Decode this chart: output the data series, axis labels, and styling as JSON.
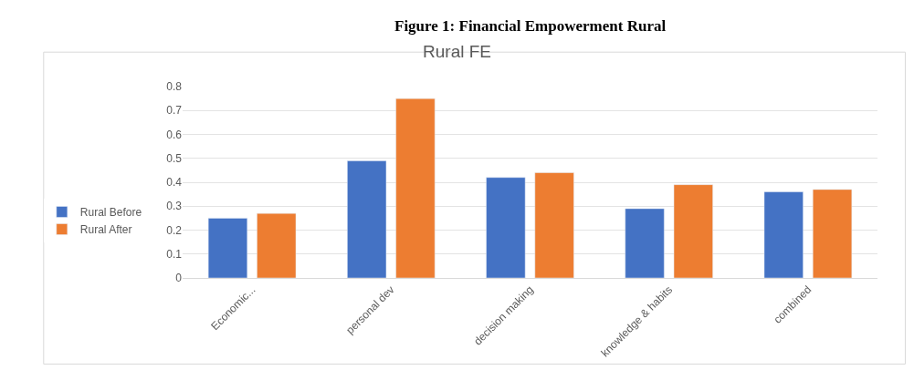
{
  "chart_data": {
    "type": "bar",
    "title": "Rural FE",
    "annotations": [
      "Figure 1: Financial Empowerment Rural"
    ],
    "categories": [
      "Economic...",
      "personal dev",
      "decision making",
      "knowledge & habits",
      "combined"
    ],
    "series": [
      {
        "name": "Rural Before",
        "color": "#4472c4",
        "values": [
          0.25,
          0.49,
          0.42,
          0.29,
          0.36
        ]
      },
      {
        "name": "Rural After",
        "color": "#ed7d31",
        "values": [
          0.27,
          0.75,
          0.44,
          0.39,
          0.37
        ]
      }
    ],
    "ylim": [
      0,
      0.8
    ],
    "yticks": [
      {
        "value": 0,
        "label": "0"
      },
      0.1,
      0.2,
      0.3,
      0.4,
      0.5,
      0.6,
      0.7,
      0.8
    ],
    "grid": "y",
    "legend": "left"
  }
}
